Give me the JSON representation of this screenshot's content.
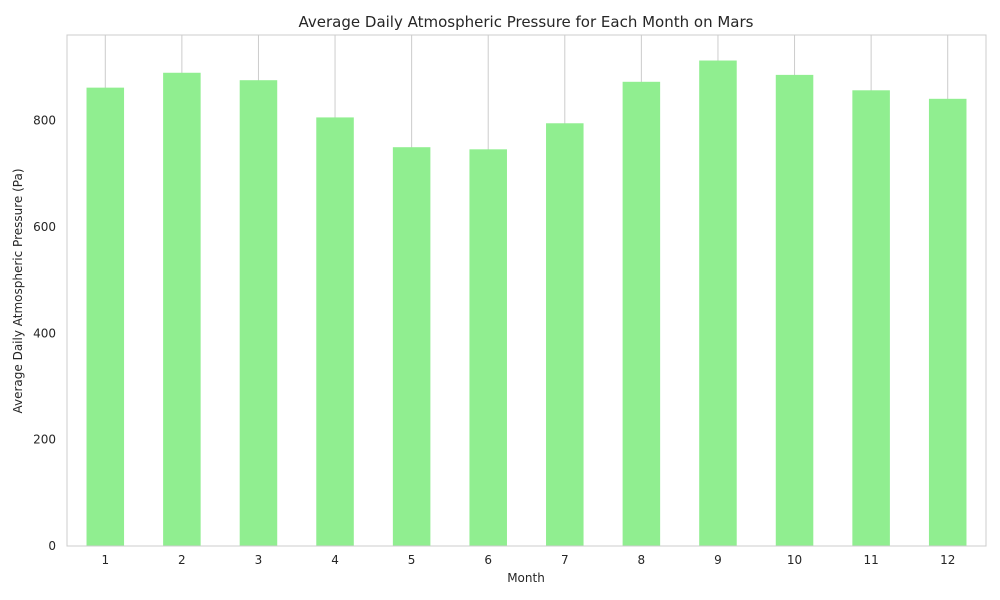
{
  "chart_data": {
    "type": "bar",
    "title": "Average Daily Atmospheric Pressure for Each Month on Mars",
    "xlabel": "Month",
    "ylabel": "Average Daily Atmospheric Pressure (Pa)",
    "categories": [
      "1",
      "2",
      "3",
      "4",
      "5",
      "6",
      "7",
      "8",
      "9",
      "10",
      "11",
      "12"
    ],
    "values": [
      862,
      890,
      876,
      806,
      750,
      746,
      795,
      873,
      913,
      886,
      857,
      841
    ],
    "ylim": [
      0,
      961
    ],
    "yticks": [
      0,
      200,
      400,
      600,
      800
    ],
    "grid": "vertical",
    "legend": "none",
    "colors": {
      "bar": "#90ee90",
      "grid": "#cccccc",
      "frame": "#cccccc",
      "text": "#262626"
    }
  }
}
